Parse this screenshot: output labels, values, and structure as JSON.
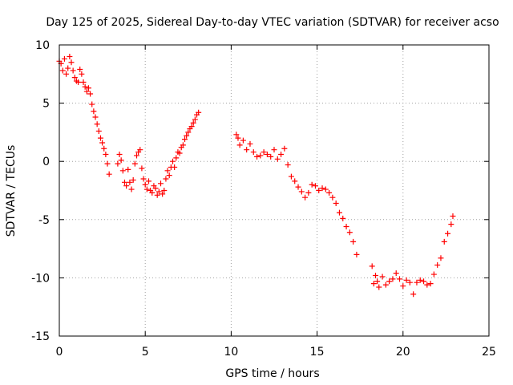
{
  "chart_data": {
    "type": "scatter",
    "title": "Day 125 of 2025, Sidereal Day-to-day VTEC variation (SDTVAR) for receiver acso",
    "xlabel": "GPS time / hours",
    "ylabel": "SDTVAR / TECUs",
    "xlim": [
      0,
      25
    ],
    "ylim": [
      -15,
      10
    ],
    "xticks": [
      0,
      5,
      10,
      15,
      20,
      25
    ],
    "yticks": [
      10,
      5,
      0,
      -5,
      -10,
      -15
    ],
    "grid": true,
    "marker": "+",
    "color": "#ff0000",
    "series": [
      {
        "name": "SDTVAR",
        "x": [
          0.0,
          0.1,
          0.2,
          0.3,
          0.4,
          0.5,
          0.6,
          0.7,
          0.8,
          0.9,
          1.0,
          1.1,
          1.2,
          1.3,
          1.4,
          1.5,
          1.6,
          1.7,
          1.8,
          1.9,
          2.0,
          2.1,
          2.2,
          2.3,
          2.4,
          2.5,
          2.6,
          2.7,
          2.8,
          2.9,
          3.4,
          3.5,
          3.6,
          3.7,
          3.8,
          3.9,
          4.0,
          4.1,
          4.2,
          4.3,
          4.4,
          4.5,
          4.6,
          4.7,
          4.8,
          4.9,
          5.0,
          5.1,
          5.2,
          5.3,
          5.4,
          5.5,
          5.6,
          5.7,
          5.8,
          5.9,
          6.0,
          6.1,
          6.2,
          6.3,
          6.4,
          6.5,
          6.6,
          6.7,
          6.8,
          6.9,
          7.0,
          7.1,
          7.2,
          7.3,
          7.4,
          7.5,
          7.6,
          7.7,
          7.8,
          7.9,
          8.0,
          8.1,
          10.3,
          10.4,
          10.5,
          10.7,
          10.9,
          11.1,
          11.3,
          11.5,
          11.7,
          11.9,
          12.1,
          12.3,
          12.5,
          12.7,
          12.9,
          13.1,
          13.3,
          13.5,
          13.7,
          13.9,
          14.1,
          14.3,
          14.5,
          14.7,
          14.9,
          15.1,
          15.3,
          15.5,
          15.7,
          15.9,
          16.1,
          16.3,
          16.5,
          16.7,
          16.9,
          17.1,
          17.3,
          18.2,
          18.3,
          18.4,
          18.5,
          18.6,
          18.8,
          19.0,
          19.2,
          19.4,
          19.6,
          19.8,
          20.0,
          20.2,
          20.4,
          20.6,
          20.8,
          21.0,
          21.2,
          21.4,
          21.6,
          21.8,
          22.0,
          22.2,
          22.4,
          22.6,
          22.8,
          22.9
        ],
        "y": [
          8.6,
          8.4,
          7.8,
          8.8,
          7.5,
          8.0,
          9.0,
          8.5,
          7.8,
          7.2,
          6.9,
          6.8,
          7.9,
          7.5,
          6.8,
          6.4,
          6.0,
          6.3,
          5.8,
          4.9,
          4.3,
          3.8,
          3.2,
          2.6,
          2.0,
          1.6,
          1.1,
          0.6,
          -0.2,
          -1.1,
          -0.2,
          0.6,
          0.1,
          -0.8,
          -1.8,
          -2.1,
          -0.7,
          -1.8,
          -2.4,
          -1.6,
          -0.2,
          0.5,
          0.8,
          1.0,
          -0.6,
          -1.5,
          -2.0,
          -2.4,
          -1.7,
          -2.5,
          -2.7,
          -2.1,
          -2.3,
          -2.9,
          -2.6,
          -1.9,
          -2.8,
          -2.5,
          -1.5,
          -0.8,
          -1.2,
          -0.5,
          0.0,
          -0.5,
          0.3,
          0.8,
          0.7,
          1.2,
          1.4,
          1.9,
          2.2,
          2.5,
          2.8,
          3.0,
          3.3,
          3.6,
          4.0,
          4.2,
          2.3,
          2.0,
          1.4,
          1.8,
          1.0,
          1.5,
          0.8,
          0.4,
          0.5,
          0.8,
          0.6,
          0.4,
          1.0,
          0.2,
          0.6,
          1.1,
          -0.3,
          -1.3,
          -1.7,
          -2.2,
          -2.6,
          -3.1,
          -2.7,
          -2.0,
          -2.1,
          -2.5,
          -2.3,
          -2.4,
          -2.7,
          -3.1,
          -3.6,
          -4.4,
          -4.9,
          -5.6,
          -6.1,
          -6.9,
          -8.0,
          -9.0,
          -10.5,
          -9.8,
          -10.3,
          -10.8,
          -9.9,
          -10.6,
          -10.3,
          -10.1,
          -9.6,
          -10.1,
          -10.7,
          -10.2,
          -10.4,
          -11.4,
          -10.4,
          -10.2,
          -10.3,
          -10.6,
          -10.5,
          -9.7,
          -8.9,
          -8.3,
          -6.9,
          -6.2,
          -5.4,
          -4.7
        ]
      }
    ]
  }
}
